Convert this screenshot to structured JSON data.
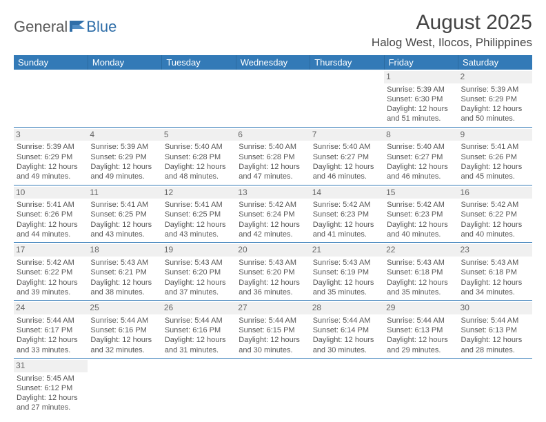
{
  "brand": {
    "name_part1": "General",
    "name_part2": "Blue"
  },
  "title": "August 2025",
  "location": "Halog West, Ilocos, Philippines",
  "colors": {
    "header_bg": "#337ab7",
    "header_text": "#ffffff",
    "text": "#555555",
    "border": "#337ab7",
    "daynum_bg": "#f0f0f0"
  },
  "day_headers": [
    "Sunday",
    "Monday",
    "Tuesday",
    "Wednesday",
    "Thursday",
    "Friday",
    "Saturday"
  ],
  "weeks": [
    [
      {
        "day": "",
        "sunrise": "",
        "sunset": "",
        "daylight1": "",
        "daylight2": ""
      },
      {
        "day": "",
        "sunrise": "",
        "sunset": "",
        "daylight1": "",
        "daylight2": ""
      },
      {
        "day": "",
        "sunrise": "",
        "sunset": "",
        "daylight1": "",
        "daylight2": ""
      },
      {
        "day": "",
        "sunrise": "",
        "sunset": "",
        "daylight1": "",
        "daylight2": ""
      },
      {
        "day": "",
        "sunrise": "",
        "sunset": "",
        "daylight1": "",
        "daylight2": ""
      },
      {
        "day": "1",
        "sunrise": "Sunrise: 5:39 AM",
        "sunset": "Sunset: 6:30 PM",
        "daylight1": "Daylight: 12 hours",
        "daylight2": "and 51 minutes."
      },
      {
        "day": "2",
        "sunrise": "Sunrise: 5:39 AM",
        "sunset": "Sunset: 6:29 PM",
        "daylight1": "Daylight: 12 hours",
        "daylight2": "and 50 minutes."
      }
    ],
    [
      {
        "day": "3",
        "sunrise": "Sunrise: 5:39 AM",
        "sunset": "Sunset: 6:29 PM",
        "daylight1": "Daylight: 12 hours",
        "daylight2": "and 49 minutes."
      },
      {
        "day": "4",
        "sunrise": "Sunrise: 5:39 AM",
        "sunset": "Sunset: 6:29 PM",
        "daylight1": "Daylight: 12 hours",
        "daylight2": "and 49 minutes."
      },
      {
        "day": "5",
        "sunrise": "Sunrise: 5:40 AM",
        "sunset": "Sunset: 6:28 PM",
        "daylight1": "Daylight: 12 hours",
        "daylight2": "and 48 minutes."
      },
      {
        "day": "6",
        "sunrise": "Sunrise: 5:40 AM",
        "sunset": "Sunset: 6:28 PM",
        "daylight1": "Daylight: 12 hours",
        "daylight2": "and 47 minutes."
      },
      {
        "day": "7",
        "sunrise": "Sunrise: 5:40 AM",
        "sunset": "Sunset: 6:27 PM",
        "daylight1": "Daylight: 12 hours",
        "daylight2": "and 46 minutes."
      },
      {
        "day": "8",
        "sunrise": "Sunrise: 5:40 AM",
        "sunset": "Sunset: 6:27 PM",
        "daylight1": "Daylight: 12 hours",
        "daylight2": "and 46 minutes."
      },
      {
        "day": "9",
        "sunrise": "Sunrise: 5:41 AM",
        "sunset": "Sunset: 6:26 PM",
        "daylight1": "Daylight: 12 hours",
        "daylight2": "and 45 minutes."
      }
    ],
    [
      {
        "day": "10",
        "sunrise": "Sunrise: 5:41 AM",
        "sunset": "Sunset: 6:26 PM",
        "daylight1": "Daylight: 12 hours",
        "daylight2": "and 44 minutes."
      },
      {
        "day": "11",
        "sunrise": "Sunrise: 5:41 AM",
        "sunset": "Sunset: 6:25 PM",
        "daylight1": "Daylight: 12 hours",
        "daylight2": "and 43 minutes."
      },
      {
        "day": "12",
        "sunrise": "Sunrise: 5:41 AM",
        "sunset": "Sunset: 6:25 PM",
        "daylight1": "Daylight: 12 hours",
        "daylight2": "and 43 minutes."
      },
      {
        "day": "13",
        "sunrise": "Sunrise: 5:42 AM",
        "sunset": "Sunset: 6:24 PM",
        "daylight1": "Daylight: 12 hours",
        "daylight2": "and 42 minutes."
      },
      {
        "day": "14",
        "sunrise": "Sunrise: 5:42 AM",
        "sunset": "Sunset: 6:23 PM",
        "daylight1": "Daylight: 12 hours",
        "daylight2": "and 41 minutes."
      },
      {
        "day": "15",
        "sunrise": "Sunrise: 5:42 AM",
        "sunset": "Sunset: 6:23 PM",
        "daylight1": "Daylight: 12 hours",
        "daylight2": "and 40 minutes."
      },
      {
        "day": "16",
        "sunrise": "Sunrise: 5:42 AM",
        "sunset": "Sunset: 6:22 PM",
        "daylight1": "Daylight: 12 hours",
        "daylight2": "and 40 minutes."
      }
    ],
    [
      {
        "day": "17",
        "sunrise": "Sunrise: 5:42 AM",
        "sunset": "Sunset: 6:22 PM",
        "daylight1": "Daylight: 12 hours",
        "daylight2": "and 39 minutes."
      },
      {
        "day": "18",
        "sunrise": "Sunrise: 5:43 AM",
        "sunset": "Sunset: 6:21 PM",
        "daylight1": "Daylight: 12 hours",
        "daylight2": "and 38 minutes."
      },
      {
        "day": "19",
        "sunrise": "Sunrise: 5:43 AM",
        "sunset": "Sunset: 6:20 PM",
        "daylight1": "Daylight: 12 hours",
        "daylight2": "and 37 minutes."
      },
      {
        "day": "20",
        "sunrise": "Sunrise: 5:43 AM",
        "sunset": "Sunset: 6:20 PM",
        "daylight1": "Daylight: 12 hours",
        "daylight2": "and 36 minutes."
      },
      {
        "day": "21",
        "sunrise": "Sunrise: 5:43 AM",
        "sunset": "Sunset: 6:19 PM",
        "daylight1": "Daylight: 12 hours",
        "daylight2": "and 35 minutes."
      },
      {
        "day": "22",
        "sunrise": "Sunrise: 5:43 AM",
        "sunset": "Sunset: 6:18 PM",
        "daylight1": "Daylight: 12 hours",
        "daylight2": "and 35 minutes."
      },
      {
        "day": "23",
        "sunrise": "Sunrise: 5:43 AM",
        "sunset": "Sunset: 6:18 PM",
        "daylight1": "Daylight: 12 hours",
        "daylight2": "and 34 minutes."
      }
    ],
    [
      {
        "day": "24",
        "sunrise": "Sunrise: 5:44 AM",
        "sunset": "Sunset: 6:17 PM",
        "daylight1": "Daylight: 12 hours",
        "daylight2": "and 33 minutes."
      },
      {
        "day": "25",
        "sunrise": "Sunrise: 5:44 AM",
        "sunset": "Sunset: 6:16 PM",
        "daylight1": "Daylight: 12 hours",
        "daylight2": "and 32 minutes."
      },
      {
        "day": "26",
        "sunrise": "Sunrise: 5:44 AM",
        "sunset": "Sunset: 6:16 PM",
        "daylight1": "Daylight: 12 hours",
        "daylight2": "and 31 minutes."
      },
      {
        "day": "27",
        "sunrise": "Sunrise: 5:44 AM",
        "sunset": "Sunset: 6:15 PM",
        "daylight1": "Daylight: 12 hours",
        "daylight2": "and 30 minutes."
      },
      {
        "day": "28",
        "sunrise": "Sunrise: 5:44 AM",
        "sunset": "Sunset: 6:14 PM",
        "daylight1": "Daylight: 12 hours",
        "daylight2": "and 30 minutes."
      },
      {
        "day": "29",
        "sunrise": "Sunrise: 5:44 AM",
        "sunset": "Sunset: 6:13 PM",
        "daylight1": "Daylight: 12 hours",
        "daylight2": "and 29 minutes."
      },
      {
        "day": "30",
        "sunrise": "Sunrise: 5:44 AM",
        "sunset": "Sunset: 6:13 PM",
        "daylight1": "Daylight: 12 hours",
        "daylight2": "and 28 minutes."
      }
    ],
    [
      {
        "day": "31",
        "sunrise": "Sunrise: 5:45 AM",
        "sunset": "Sunset: 6:12 PM",
        "daylight1": "Daylight: 12 hours",
        "daylight2": "and 27 minutes."
      },
      {
        "day": "",
        "sunrise": "",
        "sunset": "",
        "daylight1": "",
        "daylight2": ""
      },
      {
        "day": "",
        "sunrise": "",
        "sunset": "",
        "daylight1": "",
        "daylight2": ""
      },
      {
        "day": "",
        "sunrise": "",
        "sunset": "",
        "daylight1": "",
        "daylight2": ""
      },
      {
        "day": "",
        "sunrise": "",
        "sunset": "",
        "daylight1": "",
        "daylight2": ""
      },
      {
        "day": "",
        "sunrise": "",
        "sunset": "",
        "daylight1": "",
        "daylight2": ""
      },
      {
        "day": "",
        "sunrise": "",
        "sunset": "",
        "daylight1": "",
        "daylight2": ""
      }
    ]
  ]
}
